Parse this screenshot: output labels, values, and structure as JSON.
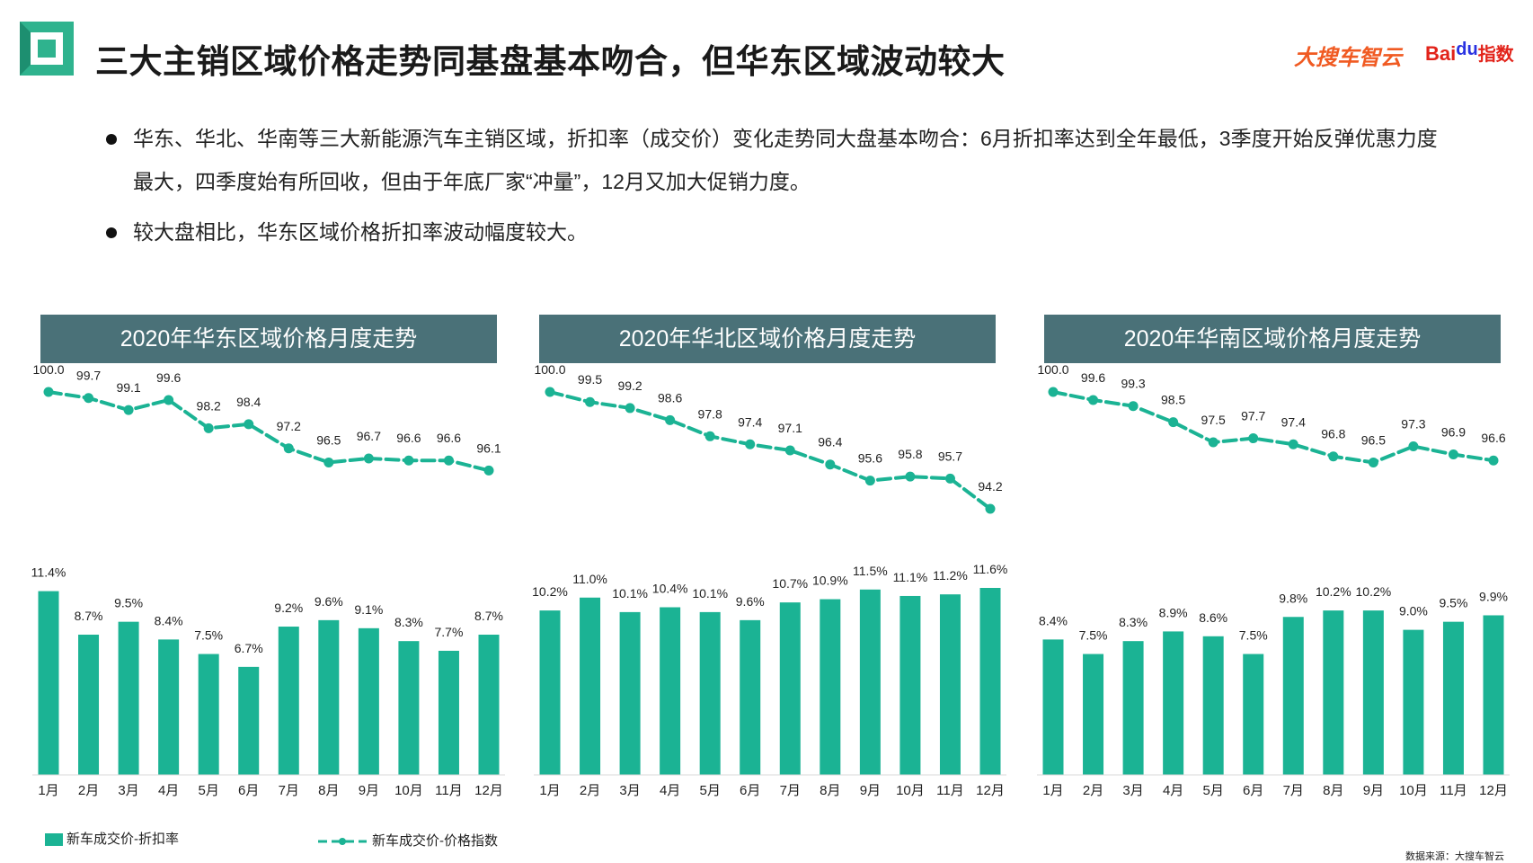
{
  "header": {
    "title": "三大主销区域价格走势同基盘基本吻合，但华东区域波动较大",
    "brand_cn": "大搜车智云",
    "brand_baidu": "Bai",
    "brand_baidu_du": "du",
    "brand_index": "指数"
  },
  "bullets": [
    "华东、华北、华南等三大新能源汽车主销区域，折扣率（成交价）变化走势同大盘基本吻合：6月折扣率达到全年最低，3季度开始反弹优惠力度最大，四季度始有所回收，但由于年底厂家“冲量”，12月又加大促销力度。",
    "较大盘相比，华东区域价格折扣率波动幅度较大。"
  ],
  "colors": {
    "bar": "#1bb394",
    "line": "#1bb394",
    "header_bg": "#4a7178"
  },
  "legend": {
    "bar_label": "新车成交价-折扣率",
    "line_label": "新车成交价-价格指数"
  },
  "source": "数据来源：大搜车智云",
  "chart_data": [
    {
      "type": "bar+line",
      "title": "2020年华东区域价格月度走势",
      "categories": [
        "1月",
        "2月",
        "3月",
        "4月",
        "5月",
        "6月",
        "7月",
        "8月",
        "9月",
        "10月",
        "11月",
        "12月"
      ],
      "series": [
        {
          "name": "新车成交价-价格指数",
          "kind": "line",
          "values": [
            100.0,
            99.7,
            99.1,
            99.6,
            98.2,
            98.4,
            97.2,
            96.5,
            96.7,
            96.6,
            96.6,
            96.1
          ],
          "labels": [
            "100.0",
            "99.7",
            "99.1",
            "99.6",
            "98.2",
            "98.4",
            "97.2",
            "96.5",
            "96.7",
            "96.6",
            "96.6",
            "96.1"
          ]
        },
        {
          "name": "新车成交价-折扣率",
          "kind": "bar",
          "values": [
            11.4,
            8.7,
            9.5,
            8.4,
            7.5,
            6.7,
            9.2,
            9.6,
            9.1,
            8.3,
            7.7,
            8.7
          ],
          "labels": [
            "11.4%",
            "8.7%",
            "9.5%",
            "8.4%",
            "7.5%",
            "6.7%",
            "9.2%",
            "9.6%",
            "9.1%",
            "8.3%",
            "7.7%",
            "8.7%"
          ]
        }
      ]
    },
    {
      "type": "bar+line",
      "title": "2020年华北区域价格月度走势",
      "categories": [
        "1月",
        "2月",
        "3月",
        "4月",
        "5月",
        "6月",
        "7月",
        "8月",
        "9月",
        "10月",
        "11月",
        "12月"
      ],
      "series": [
        {
          "name": "新车成交价-价格指数",
          "kind": "line",
          "values": [
            100.0,
            99.5,
            99.2,
            98.6,
            97.8,
            97.4,
            97.1,
            96.4,
            95.6,
            95.8,
            95.7,
            94.2
          ],
          "labels": [
            "100.0",
            "99.5",
            "99.2",
            "98.6",
            "97.8",
            "97.4",
            "97.1",
            "96.4",
            "95.6",
            "95.8",
            "95.7",
            "94.2"
          ]
        },
        {
          "name": "新车成交价-折扣率",
          "kind": "bar",
          "values": [
            10.2,
            11.0,
            10.1,
            10.4,
            10.1,
            9.6,
            10.7,
            10.9,
            11.5,
            11.1,
            11.2,
            11.6
          ],
          "labels": [
            "10.2%",
            "11.0%",
            "10.1%",
            "10.4%",
            "10.1%",
            "9.6%",
            "10.7%",
            "10.9%",
            "11.5%",
            "11.1%",
            "11.2%",
            "11.6%"
          ]
        }
      ]
    },
    {
      "type": "bar+line",
      "title": "2020年华南区域价格月度走势",
      "categories": [
        "1月",
        "2月",
        "3月",
        "4月",
        "5月",
        "6月",
        "7月",
        "8月",
        "9月",
        "10月",
        "11月",
        "12月"
      ],
      "series": [
        {
          "name": "新车成交价-价格指数",
          "kind": "line",
          "values": [
            100.0,
            99.6,
            99.3,
            98.5,
            97.5,
            97.7,
            97.4,
            96.8,
            96.5,
            97.3,
            96.9,
            96.6
          ],
          "labels": [
            "100.0",
            "99.6",
            "99.3",
            "98.5",
            "97.5",
            "97.7",
            "97.4",
            "96.8",
            "96.5",
            "97.3",
            "96.9",
            "96.6"
          ]
        },
        {
          "name": "新车成交价-折扣率",
          "kind": "bar",
          "values": [
            8.4,
            7.5,
            8.3,
            8.9,
            8.6,
            7.5,
            9.8,
            10.2,
            10.2,
            9.0,
            9.5,
            9.9
          ],
          "labels": [
            "8.4%",
            "7.5%",
            "8.3%",
            "8.9%",
            "8.6%",
            "7.5%",
            "9.8%",
            "10.2%",
            "10.2%",
            "9.0%",
            "9.5%",
            "9.9%"
          ]
        }
      ]
    }
  ]
}
